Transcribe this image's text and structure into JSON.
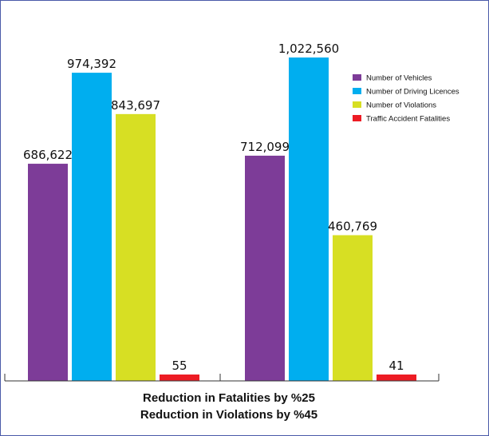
{
  "chart_data": {
    "type": "bar",
    "title": "",
    "xlabel": "",
    "ylabel": "",
    "categories": [
      "",
      ""
    ],
    "ylim": [
      0,
      1100000
    ],
    "grid": false,
    "legend_position": "top-right",
    "series": [
      {
        "name": "Number of Vehicles",
        "color": "#7d3c98",
        "values": [
          686622,
          712099
        ],
        "labels": [
          "686,622",
          "712,099"
        ]
      },
      {
        "name": "Number of Driving Licences",
        "color": "#00aeef",
        "values": [
          974392,
          1022560
        ],
        "labels": [
          "974,392",
          "1,022,560"
        ]
      },
      {
        "name": "Number of Violations",
        "color": "#d7df23",
        "values": [
          843697,
          460769
        ],
        "labels": [
          "843,697",
          "460,769"
        ]
      },
      {
        "name": "Traffic Accident Fatalities",
        "color": "#ed1c24",
        "values": [
          55,
          41
        ],
        "labels": [
          "55",
          "41"
        ]
      }
    ],
    "captions": [
      "Reduction in Fatalities by %25",
      "Reduction in Violations by %45"
    ]
  }
}
